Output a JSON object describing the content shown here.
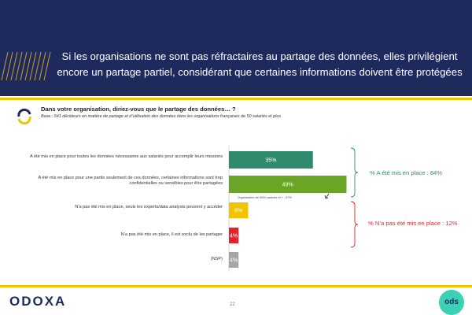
{
  "header": {
    "title": "Si les organisations ne sont pas réfractaires au partage des données, elles privilégient encore un partage partiel, considérant que certaines informations doivent être protégées"
  },
  "question": {
    "text": "Dans votre organisation, diriez-vous que le partage des données… ?",
    "base": "Base : 541 décideurs en matière de partage et d’utilisation des données dans les organisations françaises de 50 salariés et plus"
  },
  "chart_data": {
    "type": "bar",
    "orientation": "horizontal",
    "categories": [
      "A été mis en place pour toutes les données nécessaires aux salariés pour accomplir leurs missions",
      "A été mis en place pour une partie seulement de ces données, certaines informations sont trop confidentielles ou sensibles pour être partagées",
      "N’a pas été mis en place, seuls les experts/data analysts peuvent y accéder",
      "N’a pas été mis en place, il est exclu de les partager",
      "(NSP)"
    ],
    "values": [
      35,
      49,
      8,
      4,
      4
    ],
    "value_labels": [
      "35%",
      "49%",
      "8%",
      "4%",
      "4%"
    ],
    "colors": [
      "#2e8b6e",
      "#6aa527",
      "#f2c400",
      "#e3232b",
      "#a6a6a6"
    ],
    "annotation": "Organisation de 5000 salariés et + : 57%",
    "groups": [
      {
        "label": "% A été mis en place : 84%",
        "color": "#2e8b6e"
      },
      {
        "label": "% N’a pas été mis en place : 12%",
        "color": "#e3232b"
      }
    ],
    "xlim": [
      0,
      50
    ]
  },
  "footer": {
    "logo": "ODOXA",
    "page_number": "22",
    "partner_logo": "ods"
  }
}
